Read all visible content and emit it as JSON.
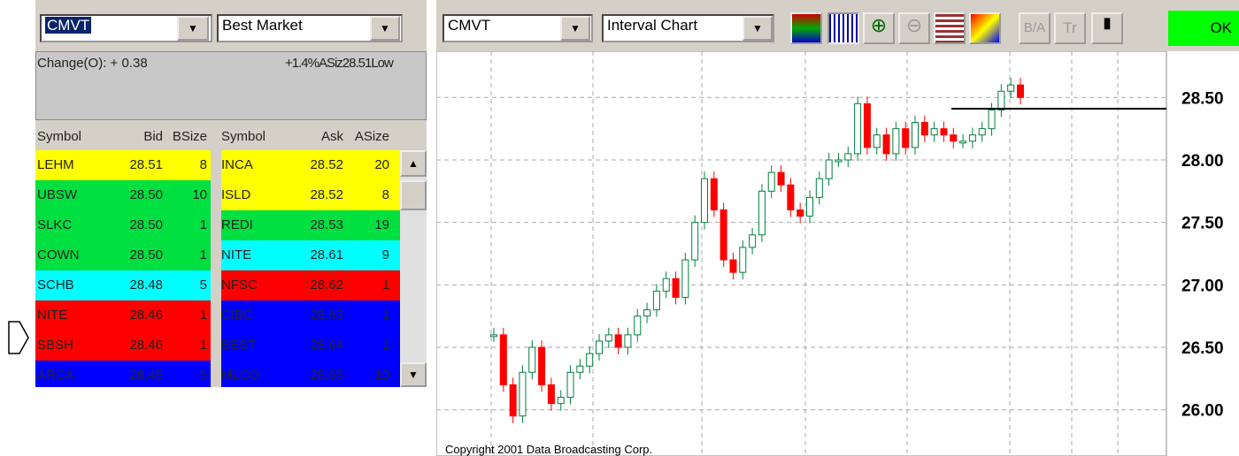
{
  "left": {
    "symbol": "CMVT",
    "market": "Best Market",
    "change": "Change(O): + 0.38",
    "summary": "+1.4%ASiz28.51Low",
    "headers": [
      "Symbol",
      "Bid",
      "BSize",
      "Symbol",
      "Ask",
      "ASize"
    ],
    "bids": [
      [
        "LEHM",
        "28.51",
        "8"
      ],
      [
        "UBSW",
        "28.50",
        "10"
      ],
      [
        "SLKC",
        "28.50",
        "1"
      ],
      [
        "COWN",
        "28.50",
        "1"
      ],
      [
        "SCHB",
        "28.48",
        "5"
      ],
      [
        "NITE",
        "28.46",
        "1"
      ],
      [
        "SBSH",
        "28.46",
        "1"
      ],
      [
        "ARCA",
        "28.45",
        "5"
      ]
    ],
    "bid_colors": [
      "#ffff00",
      "#00e040",
      "#00e040",
      "#00e040",
      "#00ffff",
      "#ff0000",
      "#ff0000",
      "#0000ff"
    ],
    "asks": [
      [
        "INCA",
        "28.52",
        "20"
      ],
      [
        "ISLD",
        "28.52",
        "8"
      ],
      [
        "REDI",
        "28.53",
        "19"
      ],
      [
        "NITE",
        "28.61",
        "9"
      ],
      [
        "NFSC",
        "28.62",
        "1"
      ],
      [
        "CIBC",
        "28.63",
        "1"
      ],
      [
        "BEST",
        "28.64",
        "1"
      ],
      [
        "MLCO",
        "28.65",
        "10"
      ]
    ],
    "ask_colors": [
      "#ffff00",
      "#ffff00",
      "#00e040",
      "#00ffff",
      "#ff0000",
      "#0000ff",
      "#0000ff",
      "#0000ff"
    ]
  },
  "right": {
    "symbol": "CMVT",
    "chart_kind": "Interval Chart",
    "icon_labels": [
      "B/A",
      "Tr"
    ],
    "ok": "OK",
    "copyright": "Copyright 2001 Data Broadcasting Corp.",
    "chart": {
      "ylim": [
        25.63,
        28.87
      ],
      "yticks": [
        {
          "value": 28.5,
          "label": "28.50"
        },
        {
          "value": 28,
          "label": "28.00"
        },
        {
          "value": 27.5,
          "label": "27.50"
        },
        {
          "value": 27,
          "label": "27.00"
        },
        {
          "value": 26.5,
          "label": "26.50"
        },
        {
          "value": 26,
          "label": "26.00"
        }
      ],
      "reference_line": 28.41,
      "up_color": "#008040",
      "down_color": "#ff0000",
      "closes": [
        26.6,
        26.2,
        25.95,
        26.3,
        26.5,
        26.2,
        26.05,
        26.1,
        26.3,
        26.35,
        26.45,
        26.55,
        26.6,
        26.5,
        26.6,
        26.75,
        26.8,
        26.95,
        27.05,
        26.9,
        27.2,
        27.5,
        27.85,
        27.6,
        27.2,
        27.1,
        27.3,
        27.4,
        27.75,
        27.9,
        27.8,
        27.6,
        27.55,
        27.7,
        27.85,
        28.0,
        28.0,
        28.05,
        28.45,
        28.1,
        28.2,
        28.05,
        28.25,
        28.1,
        28.3,
        28.2,
        28.25,
        28.2,
        28.15,
        28.15,
        28.2,
        28.25,
        28.4,
        28.55,
        28.6,
        28.5
      ]
    }
  }
}
